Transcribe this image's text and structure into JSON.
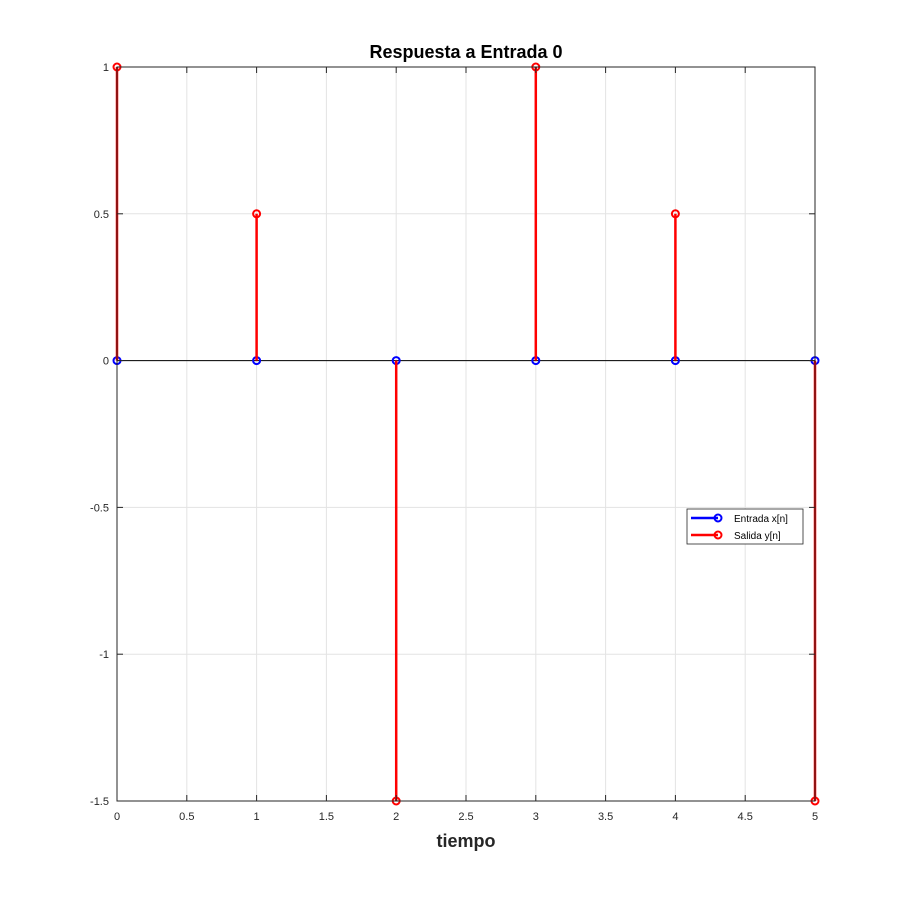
{
  "chart_data": {
    "type": "stem",
    "title": "Respuesta a Entrada 0",
    "xlabel": "tiempo",
    "ylabel": "",
    "xlim": [
      0,
      5
    ],
    "ylim": [
      -1.5,
      1
    ],
    "xticks": [
      0,
      0.5,
      1,
      1.5,
      2,
      2.5,
      3,
      3.5,
      4,
      4.5,
      5
    ],
    "xtick_labels": [
      "0",
      "0.5",
      "1",
      "1.5",
      "2",
      "2.5",
      "3",
      "3.5",
      "4",
      "4.5",
      "5"
    ],
    "yticks": [
      -1.5,
      -1,
      -0.5,
      0,
      0.5,
      1
    ],
    "ytick_labels": [
      "-1.5",
      "-1",
      "-0.5",
      "0",
      "0.5",
      "1"
    ],
    "grid": true,
    "legend_position": "right",
    "series": [
      {
        "name": "Entrada x[n]",
        "color": "#0000ff",
        "x": [
          0,
          1,
          2,
          3,
          4,
          5
        ],
        "values": [
          0,
          0,
          0,
          0,
          0,
          0
        ]
      },
      {
        "name": "Salida y[n]",
        "color": "#ff0000",
        "x": [
          0,
          1,
          2,
          3,
          4,
          5
        ],
        "values": [
          1,
          0.5,
          -1.5,
          1,
          0.5,
          -1.5
        ]
      }
    ]
  }
}
